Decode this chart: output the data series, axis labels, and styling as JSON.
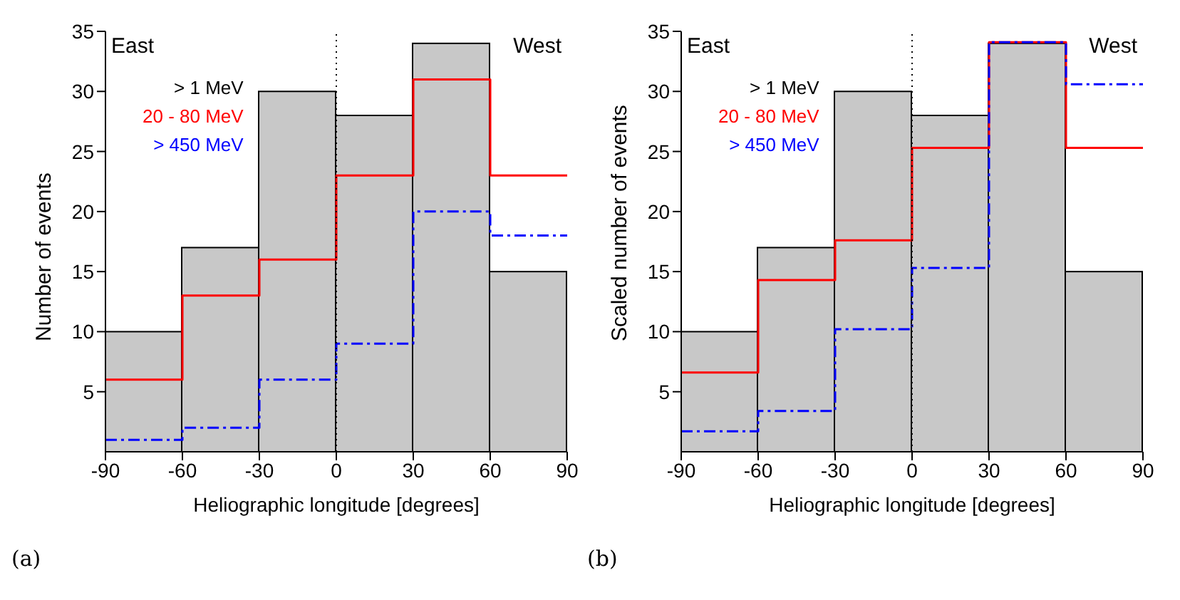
{
  "chart_data": [
    {
      "type": "histogram",
      "xlabel": "Heliographic longitude [degrees]",
      "ylabel": "Number of events",
      "bins": [
        -90,
        -60,
        -30,
        0,
        30,
        60,
        90
      ],
      "xlim": [
        -90,
        90
      ],
      "xticks": [
        -90,
        -60,
        -30,
        0,
        30,
        60,
        90
      ],
      "ylim": [
        0,
        35
      ],
      "yticks": [
        5,
        10,
        15,
        20,
        25,
        30,
        35
      ],
      "legend": "top left",
      "series": [
        {
          "name": "> 1 MeV",
          "color": "#c8c8c8",
          "values": [
            10,
            17,
            30,
            28,
            34,
            15
          ]
        },
        {
          "name": "20 - 80 MeV",
          "type": "step",
          "color": "#ff0000",
          "line_style": "solid",
          "x": [
            -90,
            -60,
            -30,
            0,
            30,
            60,
            90
          ],
          "values": [
            6,
            13,
            16,
            23,
            31,
            23,
            23
          ]
        },
        {
          "name": "> 450 MeV",
          "type": "step",
          "color": "#0000ff",
          "line_style": "dashed",
          "x": [
            -90,
            -60,
            -30,
            0,
            30,
            60,
            90
          ],
          "values": [
            1,
            2,
            6,
            9,
            20,
            18,
            18
          ]
        }
      ],
      "ref_lines": [
        {
          "axis": "x",
          "value": 0,
          "color": "#000000",
          "line_style": "dotted"
        }
      ],
      "annotations": [
        "East",
        "West",
        "(a)"
      ]
    },
    {
      "type": "histogram",
      "xlabel": "Heliographic longitude [degrees]",
      "ylabel": "Scaled number of events",
      "bins": [
        -90,
        -60,
        -30,
        0,
        30,
        60,
        90
      ],
      "xlim": [
        -90,
        90
      ],
      "xticks": [
        -90,
        -60,
        -30,
        0,
        30,
        60,
        90
      ],
      "ylim": [
        0,
        35
      ],
      "yticks": [
        5,
        10,
        15,
        20,
        25,
        30,
        35
      ],
      "legend": "top left",
      "series": [
        {
          "name": "> 1 MeV",
          "color": "#c8c8c8",
          "values": [
            10,
            17,
            30,
            28,
            34,
            15
          ]
        },
        {
          "name": "20 - 80 MeV",
          "type": "step",
          "color": "#ff0000",
          "line_style": "solid",
          "x": [
            -90,
            -60,
            -30,
            0,
            30,
            60,
            90
          ],
          "values": [
            6.6,
            14.3,
            17.6,
            25.3,
            34.1,
            25.3,
            25.3
          ]
        },
        {
          "name": "> 450 MeV",
          "type": "step",
          "color": "#0000ff",
          "line_style": "dashed",
          "x": [
            -90,
            -60,
            -30,
            0,
            30,
            60,
            90
          ],
          "values": [
            1.7,
            3.4,
            10.2,
            15.3,
            34.1,
            30.6,
            30.6
          ]
        }
      ],
      "ref_lines": [
        {
          "axis": "x",
          "value": 0,
          "color": "#000000",
          "line_style": "dotted"
        }
      ],
      "annotations": [
        "East",
        "West",
        "(b)"
      ]
    }
  ]
}
